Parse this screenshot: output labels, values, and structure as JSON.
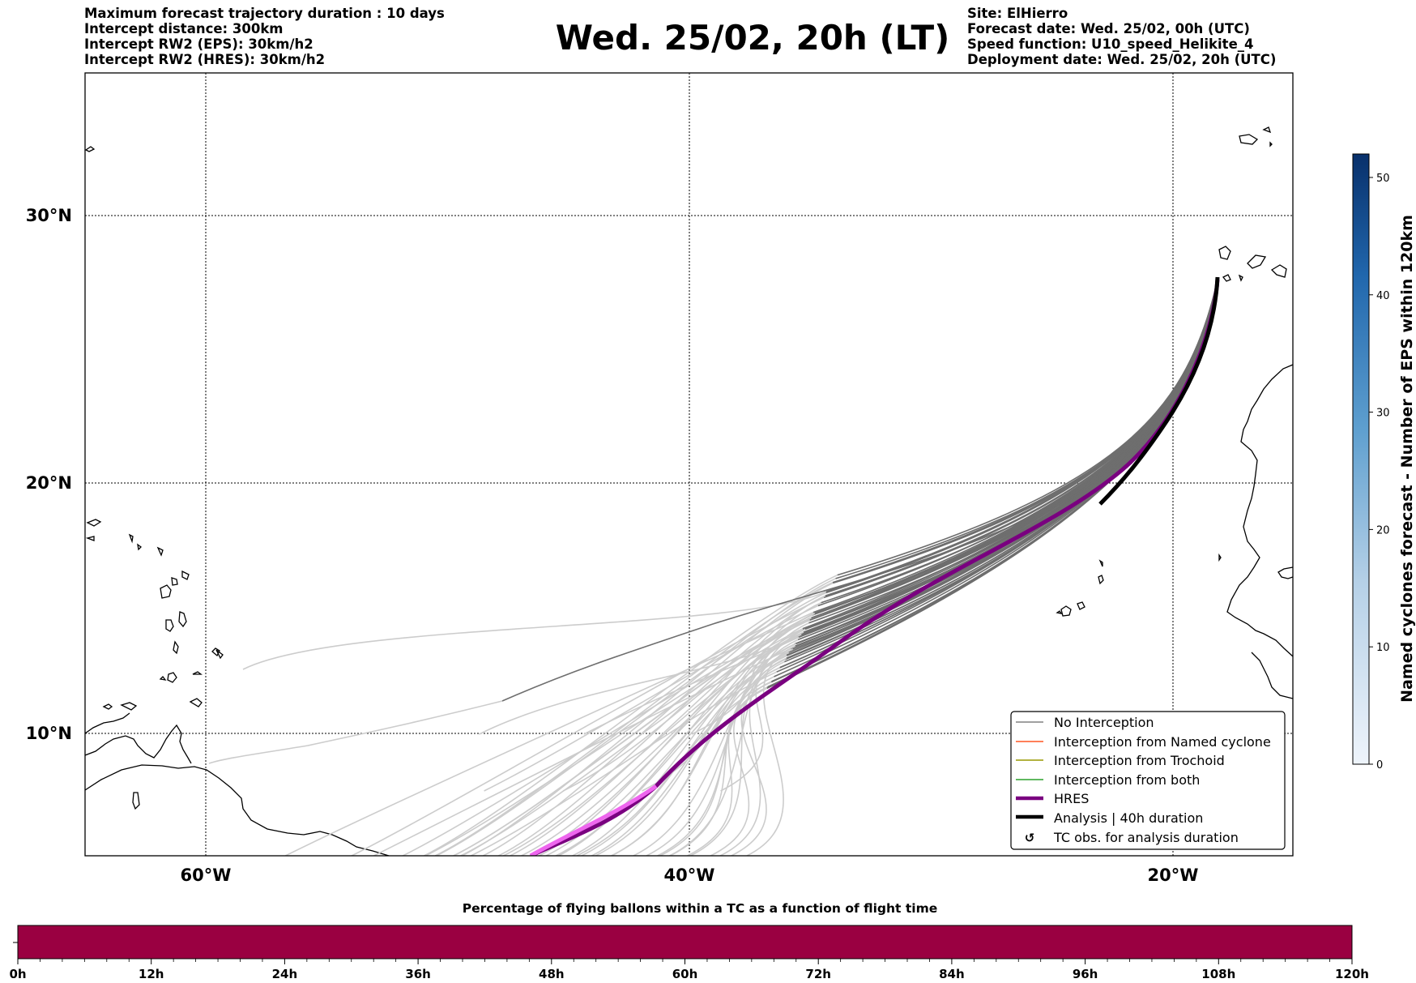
{
  "header_left": [
    "Maximum forecast trajectory duration : 10 days",
    "Intercept distance: 300km",
    "Intercept RW2 (EPS):  30km/h2",
    "Intercept RW2 (HRES): 30km/h2"
  ],
  "title": "Wed. 25/02, 20h (LT)",
  "header_right": [
    "Site: ElHierro",
    "Forecast date: Wed. 25/02, 00h (UTC)",
    "Speed function: U10_speed_Helikite_4",
    "Deployment date: Wed. 25/02, 20h (UTC)"
  ],
  "map": {
    "lat_labels": [
      "30°N",
      "20°N",
      "10°N"
    ],
    "lon_labels": [
      "60°W",
      "40°W",
      "20°W"
    ],
    "lat_ticks": [
      30,
      20,
      10
    ],
    "lon_ticks": [
      -60,
      -40,
      -20
    ],
    "extent": {
      "lon_min": -65,
      "lon_max": -15,
      "lat_min": 5.4,
      "lat_max": 34.7
    }
  },
  "legend": {
    "items": [
      {
        "label": "No Interception",
        "color": "#808080",
        "style": "thin"
      },
      {
        "label": "Interception from Named cyclone",
        "color": "#ff5722",
        "style": "thin"
      },
      {
        "label": "Interception from Trochoid",
        "color": "#999900",
        "style": "thin"
      },
      {
        "label": "Interception from both",
        "color": "#2ca02c",
        "style": "thin"
      },
      {
        "label": "HRES",
        "color": "#7a0080",
        "style": "thick"
      },
      {
        "label": "Analysis | 40h duration",
        "color": "#000000",
        "style": "thick"
      },
      {
        "label": "TC obs. for analysis duration",
        "color": "#000000",
        "style": "marker"
      }
    ]
  },
  "colorbar": {
    "label": "Named cyclones forecast - Number of EPS within 120km",
    "ticks": [
      "0",
      "10",
      "20",
      "30",
      "40",
      "50"
    ],
    "max": 52
  },
  "bottom_bar": {
    "title": "Percentage of flying ballons within a TC as a function of flight time",
    "ticks": [
      "0h",
      "12h",
      "24h",
      "36h",
      "48h",
      "60h",
      "72h",
      "84h",
      "96h",
      "108h",
      "120h"
    ],
    "fill_color": "#9a0041",
    "percent_in_tc": 0
  },
  "colors": {
    "ens": "#6e6e6e",
    "ens_light": "#cccccc",
    "hres": "#7a0080",
    "hres_light": "#ee66ee",
    "analysis": "#000000"
  }
}
